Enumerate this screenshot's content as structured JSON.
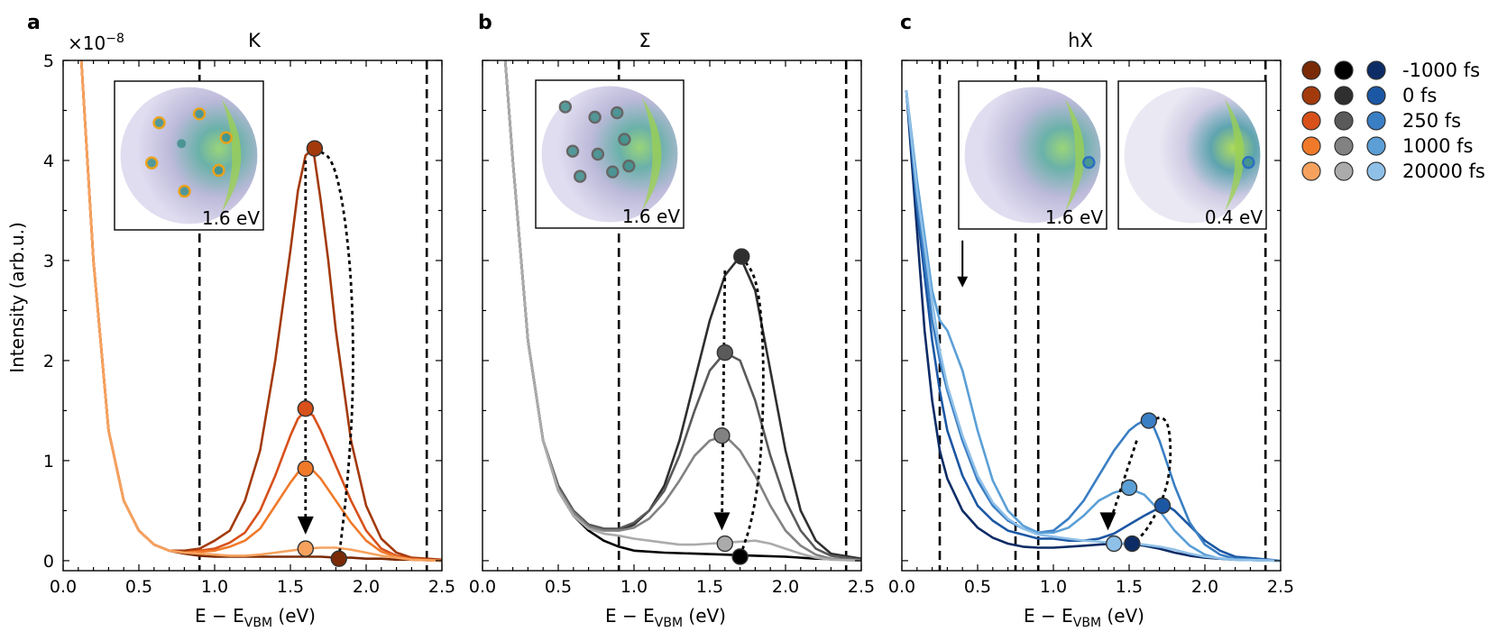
{
  "chart_data": [
    {
      "panel": "a",
      "title": "K",
      "type": "line",
      "xlabel": "E − E",
      "xlabel_sub": "VBM",
      "xlabel_unit": " (eV)",
      "ylabel": "Intensity (arb.u.)",
      "y_multiplier": "×10",
      "y_multiplier_exp": "−8",
      "xlim": [
        0,
        2.5
      ],
      "ylim": [
        -0.1,
        5
      ],
      "xticks": [
        "0.0",
        "0.5",
        "1.0",
        "1.5",
        "2.0",
        "2.5"
      ],
      "yticks": [
        "0",
        "1",
        "2",
        "3",
        "4",
        "5"
      ],
      "vlines": [
        0.9,
        2.4
      ],
      "inset_labels": [
        "1.6 eV"
      ],
      "series": [
        {
          "color": "#7a2a06",
          "x": [
            0.12,
            0.2,
            0.3,
            0.4,
            0.5,
            0.6,
            0.7,
            0.8,
            0.9,
            1.0,
            1.1,
            1.2,
            1.3,
            1.4,
            1.5,
            1.55,
            1.6,
            1.65,
            1.7,
            1.8,
            1.9,
            2.0,
            2.1,
            2.2,
            2.3,
            2.5
          ],
          "y": [
            5.0,
            3.0,
            1.3,
            0.6,
            0.3,
            0.16,
            0.1,
            0.07,
            0.05,
            0.04,
            0.04,
            0.04,
            0.04,
            0.04,
            0.04,
            0.04,
            0.04,
            0.04,
            0.04,
            0.03,
            0.03,
            0.02,
            0.02,
            0.01,
            0.01,
            0.0
          ]
        },
        {
          "color": "#a33a0c",
          "x": [
            0.12,
            0.2,
            0.3,
            0.4,
            0.5,
            0.6,
            0.7,
            0.8,
            0.9,
            1.0,
            1.1,
            1.2,
            1.3,
            1.4,
            1.5,
            1.55,
            1.6,
            1.65,
            1.7,
            1.75,
            1.8,
            1.9,
            2.0,
            2.1,
            2.2,
            2.3,
            2.5
          ],
          "y": [
            5.0,
            3.0,
            1.3,
            0.6,
            0.3,
            0.16,
            0.1,
            0.1,
            0.12,
            0.2,
            0.3,
            0.6,
            1.1,
            2.0,
            3.1,
            3.7,
            4.05,
            4.12,
            3.6,
            3.0,
            2.3,
            1.2,
            0.55,
            0.22,
            0.08,
            0.03,
            0.01
          ]
        },
        {
          "color": "#d8501a",
          "x": [
            0.12,
            0.2,
            0.3,
            0.4,
            0.5,
            0.6,
            0.7,
            0.8,
            0.9,
            1.0,
            1.1,
            1.2,
            1.3,
            1.4,
            1.5,
            1.55,
            1.6,
            1.65,
            1.7,
            1.8,
            1.9,
            2.0,
            2.1,
            2.2,
            2.3,
            2.5
          ],
          "y": [
            5.0,
            3.0,
            1.3,
            0.6,
            0.3,
            0.16,
            0.1,
            0.08,
            0.1,
            0.12,
            0.18,
            0.28,
            0.5,
            0.85,
            1.25,
            1.42,
            1.5,
            1.45,
            1.3,
            0.95,
            0.6,
            0.3,
            0.12,
            0.05,
            0.02,
            0.0
          ]
        },
        {
          "color": "#f07a2a",
          "x": [
            0.12,
            0.2,
            0.3,
            0.4,
            0.5,
            0.6,
            0.7,
            0.8,
            0.9,
            1.0,
            1.1,
            1.2,
            1.3,
            1.4,
            1.5,
            1.55,
            1.6,
            1.65,
            1.7,
            1.8,
            1.9,
            2.0,
            2.1,
            2.2,
            2.3,
            2.5
          ],
          "y": [
            5.0,
            3.0,
            1.3,
            0.6,
            0.3,
            0.16,
            0.1,
            0.08,
            0.09,
            0.1,
            0.14,
            0.2,
            0.32,
            0.55,
            0.78,
            0.88,
            0.92,
            0.9,
            0.82,
            0.6,
            0.38,
            0.2,
            0.09,
            0.04,
            0.01,
            0.0
          ]
        },
        {
          "color": "#f6a25e",
          "x": [
            0.12,
            0.2,
            0.3,
            0.4,
            0.5,
            0.6,
            0.7,
            0.8,
            0.9,
            1.0,
            1.1,
            1.2,
            1.3,
            1.4,
            1.5,
            1.6,
            1.7,
            1.8,
            1.9,
            2.0,
            2.1,
            2.2,
            2.3,
            2.5
          ],
          "y": [
            5.0,
            3.0,
            1.3,
            0.6,
            0.3,
            0.16,
            0.1,
            0.08,
            0.07,
            0.06,
            0.05,
            0.05,
            0.06,
            0.08,
            0.1,
            0.12,
            0.13,
            0.13,
            0.11,
            0.08,
            0.05,
            0.03,
            0.01,
            0.0
          ]
        }
      ],
      "markers": [
        {
          "x": 1.66,
          "y": 4.12,
          "color": "#a33a0c"
        },
        {
          "x": 1.6,
          "y": 1.52,
          "color": "#d8501a"
        },
        {
          "x": 1.6,
          "y": 0.92,
          "color": "#f07a2a"
        },
        {
          "x": 1.6,
          "y": 0.12,
          "color": "#f6a25e"
        },
        {
          "x": 1.82,
          "y": 0.02,
          "color": "#7a2a06"
        }
      ],
      "arrow": {
        "x1": 1.6,
        "y1": 4.0,
        "x2": 1.6,
        "y2": 0.28
      },
      "loop": [
        [
          1.66,
          4.12
        ],
        [
          1.8,
          4.0
        ],
        [
          1.9,
          3.0
        ],
        [
          1.92,
          1.8
        ],
        [
          1.88,
          0.8
        ],
        [
          1.82,
          0.02
        ]
      ]
    },
    {
      "panel": "b",
      "title": "Σ",
      "type": "line",
      "xlabel": "E − E",
      "xlabel_sub": "VBM",
      "xlabel_unit": " (eV)",
      "xlim": [
        0,
        2.5
      ],
      "ylim": [
        -0.1,
        5
      ],
      "xticks": [
        "0.0",
        "0.5",
        "1.0",
        "1.5",
        "2.0",
        "2.5"
      ],
      "vlines": [
        0.9,
        2.4
      ],
      "inset_labels": [
        "1.6 eV"
      ],
      "series": [
        {
          "color": "#000000",
          "x": [
            0.15,
            0.2,
            0.3,
            0.4,
            0.5,
            0.6,
            0.7,
            0.8,
            0.9,
            1.0,
            1.2,
            1.4,
            1.6,
            1.8,
            2.0,
            2.2,
            2.5
          ],
          "y": [
            5.0,
            4.0,
            2.2,
            1.2,
            0.7,
            0.45,
            0.3,
            0.2,
            0.14,
            0.1,
            0.08,
            0.07,
            0.06,
            0.05,
            0.04,
            0.02,
            0.01
          ]
        },
        {
          "color": "#2f2f2f",
          "x": [
            0.15,
            0.2,
            0.3,
            0.4,
            0.5,
            0.6,
            0.7,
            0.8,
            0.9,
            1.0,
            1.1,
            1.2,
            1.3,
            1.4,
            1.5,
            1.6,
            1.7,
            1.8,
            1.9,
            2.0,
            2.1,
            2.2,
            2.3,
            2.5
          ],
          "y": [
            5.0,
            4.0,
            2.2,
            1.2,
            0.75,
            0.5,
            0.36,
            0.32,
            0.3,
            0.36,
            0.5,
            0.75,
            1.2,
            1.8,
            2.4,
            2.85,
            3.04,
            2.7,
            1.9,
            1.1,
            0.5,
            0.2,
            0.07,
            0.02
          ]
        },
        {
          "color": "#5a5a5a",
          "x": [
            0.15,
            0.2,
            0.3,
            0.4,
            0.5,
            0.6,
            0.7,
            0.8,
            0.9,
            1.0,
            1.1,
            1.2,
            1.3,
            1.4,
            1.5,
            1.6,
            1.7,
            1.8,
            1.9,
            2.0,
            2.1,
            2.2,
            2.3,
            2.5
          ],
          "y": [
            5.0,
            4.0,
            2.2,
            1.2,
            0.75,
            0.5,
            0.36,
            0.32,
            0.32,
            0.38,
            0.5,
            0.7,
            1.05,
            1.5,
            1.9,
            2.08,
            2.0,
            1.6,
            1.05,
            0.6,
            0.3,
            0.12,
            0.05,
            0.01
          ]
        },
        {
          "color": "#828282",
          "x": [
            0.15,
            0.2,
            0.3,
            0.4,
            0.5,
            0.6,
            0.7,
            0.8,
            0.9,
            1.0,
            1.1,
            1.2,
            1.3,
            1.4,
            1.5,
            1.6,
            1.7,
            1.8,
            1.9,
            2.0,
            2.1,
            2.2,
            2.3,
            2.5
          ],
          "y": [
            5.0,
            4.0,
            2.2,
            1.2,
            0.72,
            0.48,
            0.34,
            0.3,
            0.3,
            0.33,
            0.42,
            0.58,
            0.8,
            1.05,
            1.2,
            1.25,
            1.1,
            0.85,
            0.55,
            0.3,
            0.15,
            0.06,
            0.02,
            0.0
          ]
        },
        {
          "color": "#ababab",
          "x": [
            0.15,
            0.2,
            0.3,
            0.4,
            0.5,
            0.6,
            0.7,
            0.8,
            0.9,
            1.0,
            1.1,
            1.2,
            1.3,
            1.4,
            1.5,
            1.6,
            1.7,
            1.8,
            1.9,
            2.0,
            2.1,
            2.2,
            2.3,
            2.5
          ],
          "y": [
            5.0,
            4.0,
            2.2,
            1.2,
            0.7,
            0.45,
            0.32,
            0.27,
            0.25,
            0.22,
            0.2,
            0.18,
            0.16,
            0.16,
            0.17,
            0.18,
            0.19,
            0.2,
            0.17,
            0.12,
            0.07,
            0.03,
            0.01,
            0.0
          ]
        }
      ],
      "markers": [
        {
          "x": 1.71,
          "y": 3.04,
          "color": "#2f2f2f"
        },
        {
          "x": 1.6,
          "y": 2.08,
          "color": "#5a5a5a"
        },
        {
          "x": 1.58,
          "y": 1.25,
          "color": "#828282"
        },
        {
          "x": 1.6,
          "y": 0.17,
          "color": "#ababab"
        },
        {
          "x": 1.7,
          "y": 0.04,
          "color": "#000000"
        }
      ],
      "arrow": {
        "x1": 1.6,
        "y1": 2.9,
        "x2": 1.58,
        "y2": 0.32
      },
      "loop": [
        [
          1.71,
          3.04
        ],
        [
          1.82,
          2.8
        ],
        [
          1.86,
          2.0
        ],
        [
          1.84,
          1.0
        ],
        [
          1.78,
          0.4
        ],
        [
          1.7,
          0.04
        ]
      ]
    },
    {
      "panel": "c",
      "title": "hX",
      "type": "line",
      "xlabel": "E − E",
      "xlabel_sub": "VBM",
      "xlabel_unit": " (eV)",
      "xlim": [
        0,
        2.5
      ],
      "ylim": [
        -0.1,
        5
      ],
      "xticks": [
        "0.0",
        "0.5",
        "1.0",
        "1.5",
        "2.0",
        "2.5"
      ],
      "vlines": [
        0.25,
        0.75,
        0.9,
        2.4
      ],
      "inset_labels": [
        "1.6 eV",
        "0.4 eV"
      ],
      "series": [
        {
          "color": "#0d2c66",
          "x": [
            0.03,
            0.1,
            0.15,
            0.2,
            0.25,
            0.3,
            0.4,
            0.5,
            0.6,
            0.7,
            0.8,
            0.9,
            1.0,
            1.1,
            1.2,
            1.3,
            1.4,
            1.5,
            1.6,
            1.7,
            1.8,
            1.9,
            2.0,
            2.2,
            2.5
          ],
          "y": [
            4.7,
            3.3,
            2.3,
            1.6,
            1.1,
            0.82,
            0.5,
            0.33,
            0.23,
            0.17,
            0.14,
            0.13,
            0.13,
            0.14,
            0.15,
            0.16,
            0.17,
            0.17,
            0.15,
            0.12,
            0.08,
            0.05,
            0.03,
            0.01,
            0.0
          ]
        },
        {
          "color": "#1c57a3",
          "x": [
            0.03,
            0.1,
            0.2,
            0.25,
            0.3,
            0.4,
            0.5,
            0.6,
            0.7,
            0.8,
            0.9,
            1.0,
            1.1,
            1.2,
            1.3,
            1.4,
            1.5,
            1.6,
            1.7,
            1.75,
            1.8,
            1.9,
            2.0,
            2.1,
            2.2,
            2.5
          ],
          "y": [
            4.7,
            3.5,
            2.2,
            1.7,
            1.3,
            0.85,
            0.55,
            0.4,
            0.3,
            0.26,
            0.22,
            0.22,
            0.2,
            0.2,
            0.22,
            0.27,
            0.36,
            0.45,
            0.53,
            0.55,
            0.5,
            0.35,
            0.2,
            0.1,
            0.04,
            0.0
          ]
        },
        {
          "color": "#3a7ec4",
          "x": [
            0.03,
            0.1,
            0.2,
            0.25,
            0.3,
            0.4,
            0.5,
            0.6,
            0.7,
            0.8,
            0.9,
            1.0,
            1.1,
            1.2,
            1.3,
            1.4,
            1.5,
            1.55,
            1.6,
            1.65,
            1.7,
            1.8,
            1.9,
            2.0,
            2.1,
            2.2,
            2.5
          ],
          "y": [
            4.7,
            3.6,
            2.4,
            2.0,
            1.7,
            1.2,
            0.8,
            0.55,
            0.4,
            0.32,
            0.28,
            0.3,
            0.42,
            0.6,
            0.85,
            1.1,
            1.3,
            1.36,
            1.4,
            1.38,
            1.2,
            0.75,
            0.38,
            0.16,
            0.06,
            0.02,
            0.0
          ]
        },
        {
          "color": "#5b9fd6",
          "x": [
            0.03,
            0.1,
            0.2,
            0.25,
            0.3,
            0.4,
            0.5,
            0.6,
            0.7,
            0.8,
            0.9,
            1.0,
            1.1,
            1.2,
            1.3,
            1.4,
            1.5,
            1.6,
            1.7,
            1.8,
            1.9,
            2.0,
            2.1,
            2.2,
            2.5
          ],
          "y": [
            4.7,
            3.8,
            2.7,
            2.4,
            2.3,
            1.9,
            1.3,
            0.8,
            0.5,
            0.35,
            0.28,
            0.28,
            0.33,
            0.45,
            0.6,
            0.68,
            0.72,
            0.66,
            0.5,
            0.3,
            0.15,
            0.06,
            0.02,
            0.01,
            0.0
          ]
        },
        {
          "color": "#8fc0e8",
          "x": [
            0.03,
            0.1,
            0.2,
            0.25,
            0.3,
            0.4,
            0.5,
            0.6,
            0.7,
            0.8,
            0.9,
            1.0,
            1.1,
            1.2,
            1.3,
            1.4,
            1.5,
            1.6,
            1.7,
            1.8,
            1.9,
            2.0,
            2.2,
            2.5
          ],
          "y": [
            4.7,
            3.7,
            2.6,
            2.1,
            1.75,
            1.25,
            0.85,
            0.58,
            0.42,
            0.32,
            0.26,
            0.24,
            0.22,
            0.2,
            0.19,
            0.18,
            0.17,
            0.16,
            0.14,
            0.11,
            0.07,
            0.04,
            0.01,
            0.0
          ]
        }
      ],
      "markers": [
        {
          "x": 1.63,
          "y": 1.4,
          "color": "#3a7ec4"
        },
        {
          "x": 1.5,
          "y": 0.73,
          "color": "#5b9fd6"
        },
        {
          "x": 1.72,
          "y": 0.55,
          "color": "#1c57a3"
        },
        {
          "x": 1.52,
          "y": 0.17,
          "color": "#0d2c66"
        },
        {
          "x": 1.4,
          "y": 0.17,
          "color": "#8fc0e8"
        }
      ],
      "arrow": {
        "x1": 1.55,
        "y1": 1.2,
        "x2": 1.36,
        "y2": 0.32
      },
      "down_arrow": {
        "x": 0.4,
        "y1": 3.2,
        "y2": 2.75
      },
      "loop": [
        [
          1.63,
          1.4
        ],
        [
          1.75,
          1.45
        ],
        [
          1.78,
          1.1
        ],
        [
          1.75,
          0.7
        ],
        [
          1.62,
          0.3
        ],
        [
          1.52,
          0.17
        ]
      ]
    }
  ],
  "legend": {
    "rows": [
      {
        "label": "-1000 fs",
        "colors": [
          "#7a2a06",
          "#000000",
          "#0d2c66"
        ]
      },
      {
        "label": "0 fs",
        "colors": [
          "#a33a0c",
          "#2f2f2f",
          "#1c57a3"
        ]
      },
      {
        "label": "250 fs",
        "colors": [
          "#d8501a",
          "#5a5a5a",
          "#3a7ec4"
        ]
      },
      {
        "label": "1000 fs",
        "colors": [
          "#f07a2a",
          "#828282",
          "#5b9fd6"
        ]
      },
      {
        "label": "20000 fs",
        "colors": [
          "#f6a25e",
          "#ababab",
          "#8fc0e8"
        ]
      }
    ]
  }
}
